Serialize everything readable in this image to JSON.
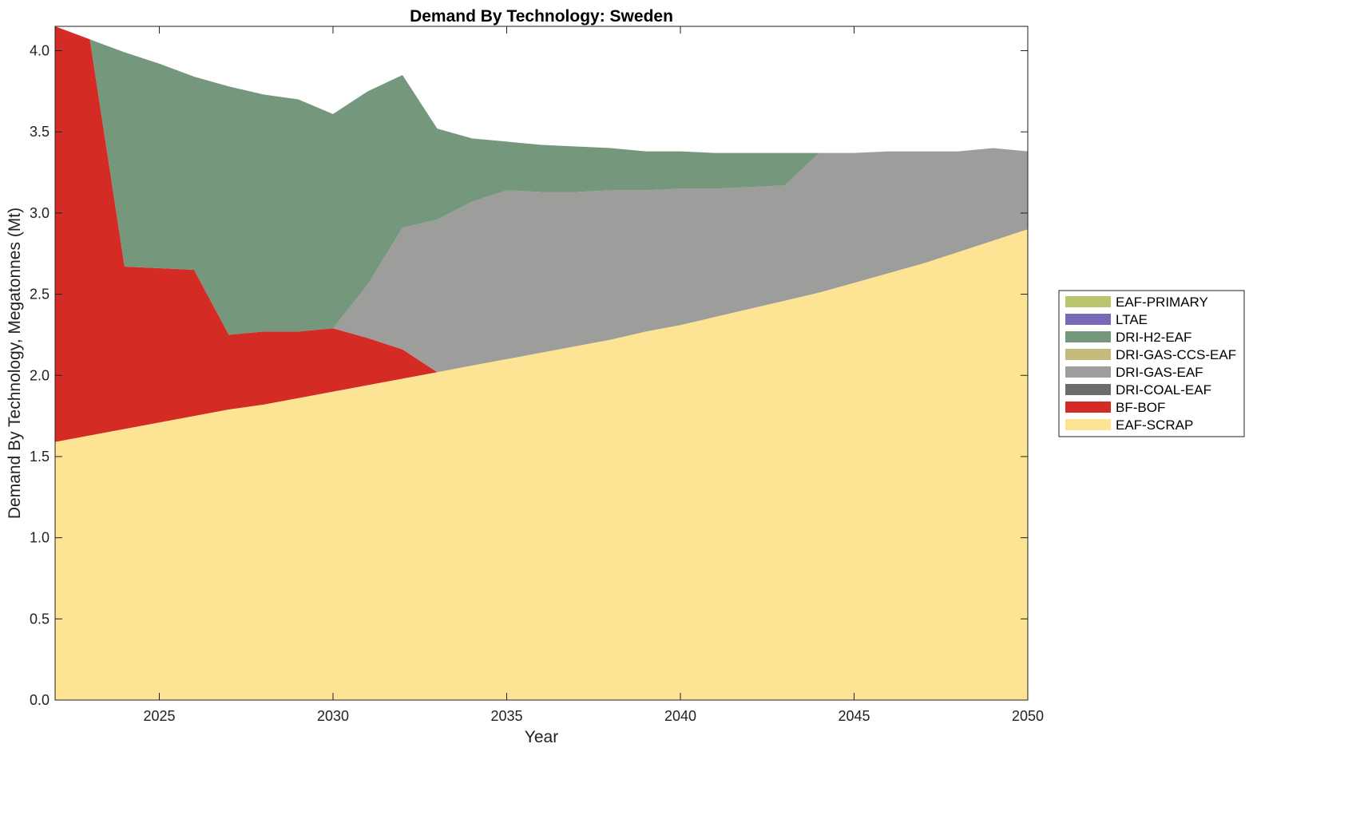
{
  "chart_data": {
    "type": "area",
    "title": "Demand By Technology: Sweden",
    "xlabel": "Year",
    "ylabel": "Demand By Technology, Megatonnes (Mt)",
    "xlim": [
      2022,
      2050
    ],
    "ylim": [
      0,
      4.15
    ],
    "xticks": [
      2025,
      2030,
      2035,
      2040,
      2045,
      2050
    ],
    "yticks": [
      0.0,
      0.5,
      1.0,
      1.5,
      2.0,
      2.5,
      3.0,
      3.5,
      4.0
    ],
    "ytick_labels": [
      "0.0",
      "0.5",
      "1.0",
      "1.5",
      "2.0",
      "2.5",
      "3.0",
      "3.5",
      "4.0"
    ],
    "grid": false,
    "legend_position": "outside-right",
    "x": [
      2022,
      2023,
      2024,
      2025,
      2026,
      2027,
      2028,
      2029,
      2030,
      2031,
      2032,
      2033,
      2034,
      2035,
      2036,
      2037,
      2038,
      2039,
      2040,
      2041,
      2042,
      2043,
      2044,
      2045,
      2046,
      2047,
      2048,
      2049,
      2050
    ],
    "series": [
      {
        "name": "EAF-SCRAP",
        "color": "#fde494",
        "values": [
          1.59,
          1.63,
          1.67,
          1.71,
          1.75,
          1.79,
          1.82,
          1.86,
          1.9,
          1.94,
          1.98,
          2.02,
          2.06,
          2.1,
          2.14,
          2.18,
          2.22,
          2.27,
          2.31,
          2.36,
          2.41,
          2.46,
          2.51,
          2.57,
          2.63,
          2.69,
          2.76,
          2.83,
          2.9
        ]
      },
      {
        "name": "BF-BOF",
        "color": "#d42b25",
        "values": [
          2.56,
          2.44,
          1.0,
          0.95,
          0.9,
          0.46,
          0.45,
          0.41,
          0.39,
          0.29,
          0.18,
          0.0,
          0.0,
          0.0,
          0.0,
          0.0,
          0.0,
          0.0,
          0.0,
          0.0,
          0.0,
          0.0,
          0.0,
          0.0,
          0.0,
          0.0,
          0.0,
          0.0,
          0.0
        ]
      },
      {
        "name": "DRI-COAL-EAF",
        "color": "#6b6b6b",
        "values": [
          0,
          0,
          0,
          0,
          0,
          0,
          0,
          0,
          0,
          0,
          0,
          0,
          0,
          0,
          0,
          0,
          0,
          0,
          0,
          0,
          0,
          0,
          0,
          0,
          0,
          0,
          0,
          0,
          0
        ]
      },
      {
        "name": "DRI-GAS-EAF",
        "color": "#9d9d9b",
        "values": [
          0.0,
          0.0,
          0.0,
          0.0,
          0.0,
          0.0,
          0.0,
          0.0,
          0.0,
          0.33,
          0.75,
          0.94,
          1.01,
          1.04,
          0.99,
          0.95,
          0.92,
          0.87,
          0.84,
          0.79,
          0.75,
          0.71,
          0.86,
          0.8,
          0.75,
          0.69,
          0.62,
          0.57,
          0.48
        ]
      },
      {
        "name": "DRI-GAS-CCS-EAF",
        "color": "#c4ba7a",
        "values": [
          0,
          0,
          0,
          0,
          0,
          0,
          0,
          0,
          0,
          0,
          0,
          0,
          0,
          0,
          0,
          0,
          0,
          0,
          0,
          0,
          0,
          0,
          0,
          0,
          0,
          0,
          0,
          0,
          0
        ]
      },
      {
        "name": "DRI-H2-EAF",
        "color": "#75977c",
        "values": [
          0.0,
          0.0,
          1.32,
          1.26,
          1.19,
          1.53,
          1.46,
          1.43,
          1.32,
          1.19,
          0.94,
          0.56,
          0.39,
          0.3,
          0.29,
          0.28,
          0.26,
          0.24,
          0.23,
          0.22,
          0.21,
          0.2,
          0.0,
          0.0,
          0.0,
          0.0,
          0.0,
          0.0,
          0.0
        ]
      },
      {
        "name": "LTAE",
        "color": "#776bb8",
        "values": [
          0,
          0,
          0,
          0,
          0,
          0,
          0,
          0,
          0,
          0,
          0,
          0,
          0,
          0,
          0,
          0,
          0,
          0,
          0,
          0,
          0,
          0,
          0,
          0,
          0,
          0,
          0,
          0,
          0
        ]
      },
      {
        "name": "EAF-PRIMARY",
        "color": "#bbc46e",
        "values": [
          0,
          0,
          0,
          0,
          0,
          0,
          0,
          0,
          0,
          0,
          0,
          0,
          0,
          0,
          0,
          0,
          0,
          0,
          0,
          0,
          0,
          0,
          0,
          0,
          0,
          0,
          0,
          0,
          0
        ]
      }
    ],
    "legend_order": [
      "EAF-PRIMARY",
      "LTAE",
      "DRI-H2-EAF",
      "DRI-GAS-CCS-EAF",
      "DRI-GAS-EAF",
      "DRI-COAL-EAF",
      "BF-BOF",
      "EAF-SCRAP"
    ]
  }
}
